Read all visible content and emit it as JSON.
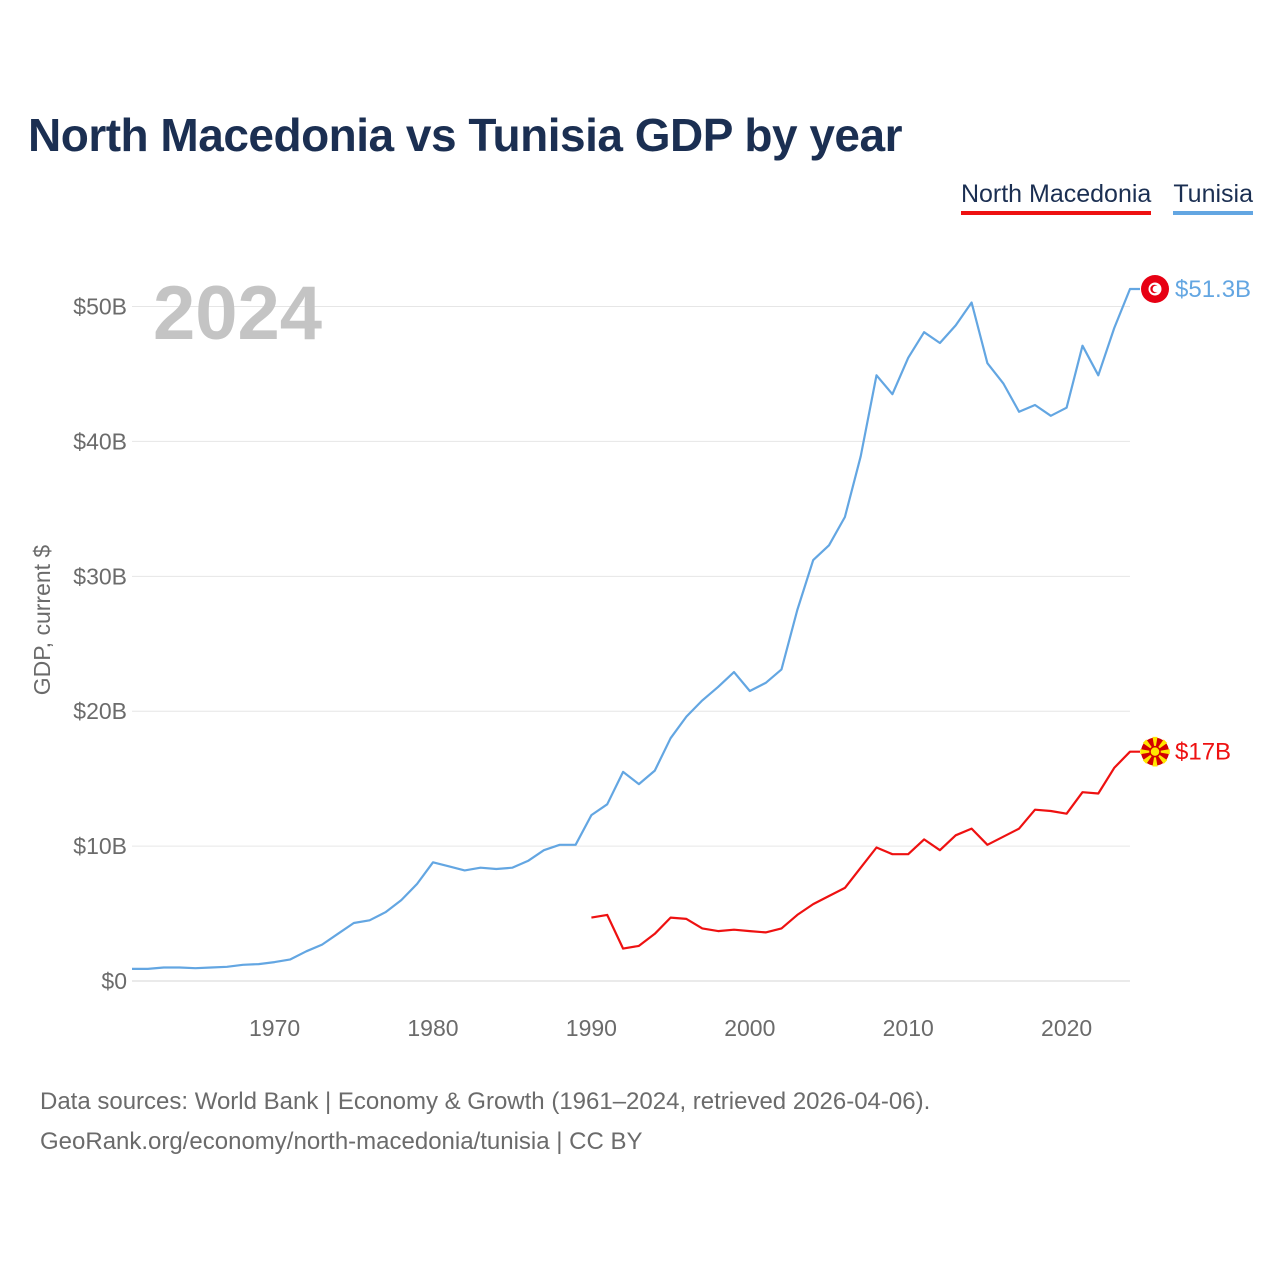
{
  "title": "North Macedonia vs Tunisia GDP by year",
  "legend": [
    {
      "label": "North Macedonia",
      "color": "#ee1111"
    },
    {
      "label": "Tunisia",
      "color": "#63a6e2"
    }
  ],
  "footer": {
    "line1": "Data sources: World Bank | Economy & Growth (1961–2024, retrieved 2026-04-06).",
    "line2": "GeoRank.org/economy/north-macedonia/tunisia | CC BY"
  },
  "chart_data": {
    "type": "line",
    "title": "North Macedonia vs Tunisia GDP by year",
    "year_label": "2024",
    "xlabel": "",
    "ylabel": "GDP, current $",
    "xlim": [
      1961,
      2024
    ],
    "ylim": [
      0,
      51.3
    ],
    "grid": true,
    "legend_position": "top-right",
    "x_ticks": [
      1970,
      1980,
      1990,
      2000,
      2010,
      2020
    ],
    "y_ticks": [
      {
        "value": 0,
        "label": "$0"
      },
      {
        "value": 10,
        "label": "$10B"
      },
      {
        "value": 20,
        "label": "$20B"
      },
      {
        "value": 30,
        "label": "$30B"
      },
      {
        "value": 40,
        "label": "$40B"
      },
      {
        "value": 50,
        "label": "$50B"
      }
    ],
    "units": "billions of current US$",
    "series": [
      {
        "name": "Tunisia",
        "color": "#63a6e2",
        "end_label": "$51.3B",
        "icon": "tunisia-flag-icon",
        "x": [
          1961,
          1962,
          1963,
          1964,
          1965,
          1966,
          1967,
          1968,
          1969,
          1970,
          1971,
          1972,
          1973,
          1974,
          1975,
          1976,
          1977,
          1978,
          1979,
          1980,
          1981,
          1982,
          1983,
          1984,
          1985,
          1986,
          1987,
          1988,
          1989,
          1990,
          1991,
          1992,
          1993,
          1994,
          1995,
          1996,
          1997,
          1998,
          1999,
          2000,
          2001,
          2002,
          2003,
          2004,
          2005,
          2006,
          2007,
          2008,
          2009,
          2010,
          2011,
          2012,
          2013,
          2014,
          2015,
          2016,
          2017,
          2018,
          2019,
          2020,
          2021,
          2022,
          2023,
          2024
        ],
        "values": [
          0.9,
          0.9,
          1.0,
          1.0,
          0.95,
          1.0,
          1.05,
          1.2,
          1.25,
          1.4,
          1.6,
          2.2,
          2.7,
          3.5,
          4.3,
          4.5,
          5.1,
          6.0,
          7.2,
          8.8,
          8.5,
          8.2,
          8.4,
          8.3,
          8.4,
          8.9,
          9.7,
          10.1,
          10.1,
          12.3,
          13.1,
          15.5,
          14.6,
          15.6,
          18.0,
          19.6,
          20.8,
          21.8,
          22.9,
          21.5,
          22.1,
          23.1,
          27.5,
          31.2,
          32.3,
          34.4,
          38.9,
          44.9,
          43.5,
          46.2,
          48.1,
          47.3,
          48.6,
          50.3,
          45.8,
          44.3,
          42.2,
          42.7,
          41.9,
          42.5,
          47.1,
          44.9,
          48.4,
          51.3
        ]
      },
      {
        "name": "North Macedonia",
        "color": "#ee1111",
        "end_label": "$17B",
        "icon": "north-macedonia-flag-icon",
        "x": [
          1990,
          1991,
          1992,
          1993,
          1994,
          1995,
          1996,
          1997,
          1998,
          1999,
          2000,
          2001,
          2002,
          2003,
          2004,
          2005,
          2006,
          2007,
          2008,
          2009,
          2010,
          2011,
          2012,
          2013,
          2014,
          2015,
          2016,
          2017,
          2018,
          2019,
          2020,
          2021,
          2022,
          2023,
          2024
        ],
        "values": [
          4.7,
          4.9,
          2.4,
          2.6,
          3.5,
          4.7,
          4.6,
          3.9,
          3.7,
          3.8,
          3.7,
          3.6,
          3.9,
          4.9,
          5.7,
          6.3,
          6.9,
          8.4,
          9.9,
          9.4,
          9.4,
          10.5,
          9.7,
          10.8,
          11.3,
          10.1,
          10.7,
          11.3,
          12.7,
          12.6,
          12.4,
          14.0,
          13.9,
          15.8,
          17.0
        ]
      }
    ]
  }
}
